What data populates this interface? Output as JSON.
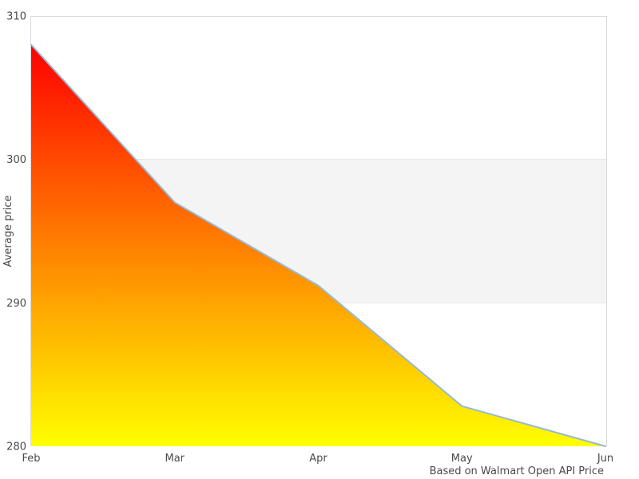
{
  "chart_data": {
    "type": "area",
    "x": [
      "Feb",
      "Mar",
      "Apr",
      "May",
      "Jun"
    ],
    "series": [
      {
        "name": "Average price",
        "values": [
          308,
          297,
          291.2,
          282.8,
          280
        ]
      }
    ],
    "title": "",
    "xlabel": "",
    "ylabel": "Average price",
    "ylim": [
      280,
      310
    ],
    "yticks": [
      280,
      290,
      300,
      310
    ],
    "plot_band": {
      "from": 290,
      "to": 300
    },
    "caption": "Based on Walmart Open API Price",
    "grid": false,
    "legend": "none"
  },
  "colors": {
    "background": "#ffffff",
    "area_gradient_top": "#ff0000",
    "area_gradient_bottom": "#ffff00",
    "line": "#96b9d7",
    "plot_border": "#d9d9d9",
    "band_fill": "#f4f4f4",
    "band_edge": "#e4e4e4",
    "text": "#4a4a4a"
  }
}
